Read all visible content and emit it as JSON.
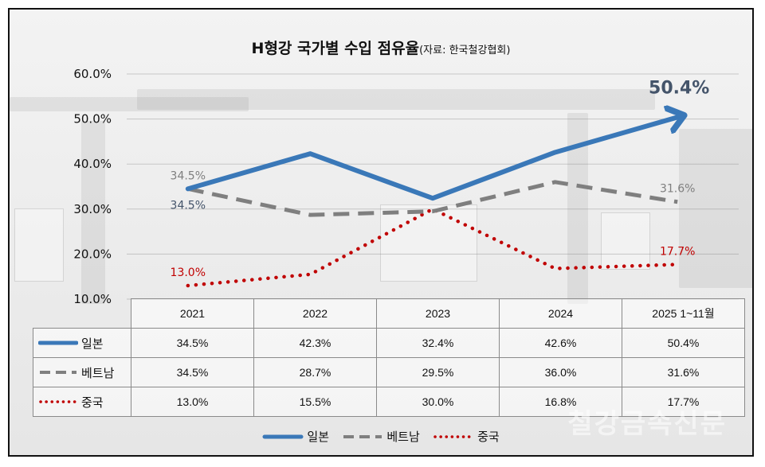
{
  "title": "H형강 국가별 수입 점유율",
  "source": "(자료: 한국철강협회)",
  "watermark": "철강금속신문",
  "chart_data": {
    "type": "line",
    "categories": [
      "2021",
      "2022",
      "2023",
      "2024",
      "2025 1~11월"
    ],
    "ylim": [
      10,
      60
    ],
    "yticks": [
      "10.0%",
      "20.0%",
      "30.0%",
      "40.0%",
      "50.0%",
      "60.0%"
    ],
    "ytick_values": [
      10,
      20,
      30,
      40,
      50,
      60
    ],
    "series": [
      {
        "name": "일본",
        "values": [
          34.5,
          42.3,
          32.4,
          42.6,
          50.4
        ],
        "display": [
          "34.5%",
          "42.3%",
          "32.4%",
          "42.6%",
          "50.4%"
        ],
        "color": "#3a78b8",
        "style": "solid-arrow"
      },
      {
        "name": "베트남",
        "values": [
          34.5,
          28.7,
          29.5,
          36.0,
          31.6
        ],
        "display": [
          "34.5%",
          "28.7%",
          "29.5%",
          "36.0%",
          "31.6%"
        ],
        "color": "#7f7f7f",
        "style": "dashed"
      },
      {
        "name": "중국",
        "values": [
          13.0,
          15.5,
          30.0,
          16.8,
          17.7
        ],
        "display": [
          "13.0%",
          "15.5%",
          "30.0%",
          "16.8%",
          "17.7%"
        ],
        "color": "#c00000",
        "style": "dotted"
      }
    ],
    "annotations": [
      {
        "text": "34.5%",
        "series": "베트남",
        "index": 0,
        "color": "#7f7f7f",
        "pos": "above"
      },
      {
        "text": "34.5%",
        "series": "일본",
        "index": 0,
        "color": "#44546a",
        "pos": "below"
      },
      {
        "text": "31.6%",
        "series": "베트남",
        "index": 4,
        "color": "#7f7f7f",
        "pos": "above"
      },
      {
        "text": "13.0%",
        "series": "중국",
        "index": 0,
        "color": "#c00000",
        "pos": "above"
      },
      {
        "text": "17.7%",
        "series": "중국",
        "index": 4,
        "color": "#c00000",
        "pos": "above"
      },
      {
        "text": "50.4%",
        "series": "일본",
        "index": 4,
        "color": "#44546a",
        "pos": "big"
      }
    ],
    "legend": "bottom"
  }
}
